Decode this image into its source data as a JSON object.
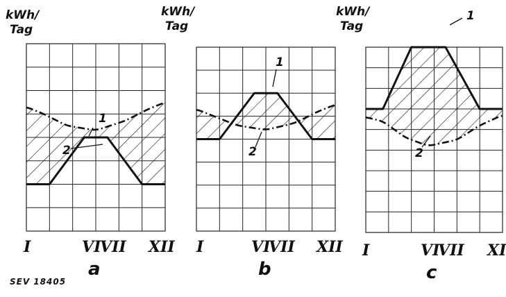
{
  "ylabel_line1": "kWh/",
  "ylabel_line2": "Tag",
  "figure_code": "SEV 18405",
  "chart_data": [
    {
      "type": "line",
      "panel_label": "a",
      "x_ticks": [
        "I",
        "VI",
        "VII",
        "XII"
      ],
      "xlim": [
        0.5,
        12.5
      ],
      "ylim": [
        0,
        8
      ],
      "grid": true,
      "hatched_between_series": true,
      "series": [
        {
          "name": "1",
          "x": [
            0.5,
            2.5,
            5.5,
            7.5,
            10.5,
            12.5
          ],
          "values": [
            2,
            2,
            4,
            4,
            2,
            2
          ]
        },
        {
          "name": "2",
          "x": [
            0.5,
            2,
            4,
            6.5,
            9,
            11,
            12.5
          ],
          "values": [
            5.3,
            5.0,
            4.5,
            4.3,
            4.7,
            5.2,
            5.5
          ]
        }
      ]
    },
    {
      "type": "line",
      "panel_label": "b",
      "x_ticks": [
        "I",
        "VI",
        "VII",
        "XII"
      ],
      "xlim": [
        0.5,
        12.5
      ],
      "ylim": [
        0,
        8
      ],
      "grid": true,
      "hatched_between_series": true,
      "series": [
        {
          "name": "1",
          "x": [
            0.5,
            2.5,
            5.5,
            7.5,
            10.5,
            12.5
          ],
          "values": [
            4,
            4,
            6,
            6,
            4,
            4
          ]
        },
        {
          "name": "2",
          "x": [
            0.5,
            2,
            4,
            6.5,
            9,
            11,
            12.5
          ],
          "values": [
            5.3,
            5.0,
            4.6,
            4.4,
            4.7,
            5.2,
            5.5
          ]
        }
      ]
    },
    {
      "type": "line",
      "panel_label": "c",
      "x_ticks": [
        "I",
        "VI",
        "VII",
        "XII"
      ],
      "xlim": [
        0.5,
        12.5
      ],
      "ylim": [
        0,
        9
      ],
      "grid": true,
      "hatched_between_series": true,
      "series": [
        {
          "name": "1",
          "x": [
            0.5,
            2,
            4.5,
            7.5,
            10.5,
            12.5
          ],
          "values": [
            6,
            6,
            9,
            9,
            6,
            6
          ]
        },
        {
          "name": "2",
          "x": [
            0.5,
            2,
            4,
            6,
            8.5,
            10.5,
            12.5
          ],
          "values": [
            5.6,
            5.4,
            4.6,
            4.2,
            4.5,
            5.2,
            5.7
          ]
        }
      ]
    }
  ]
}
